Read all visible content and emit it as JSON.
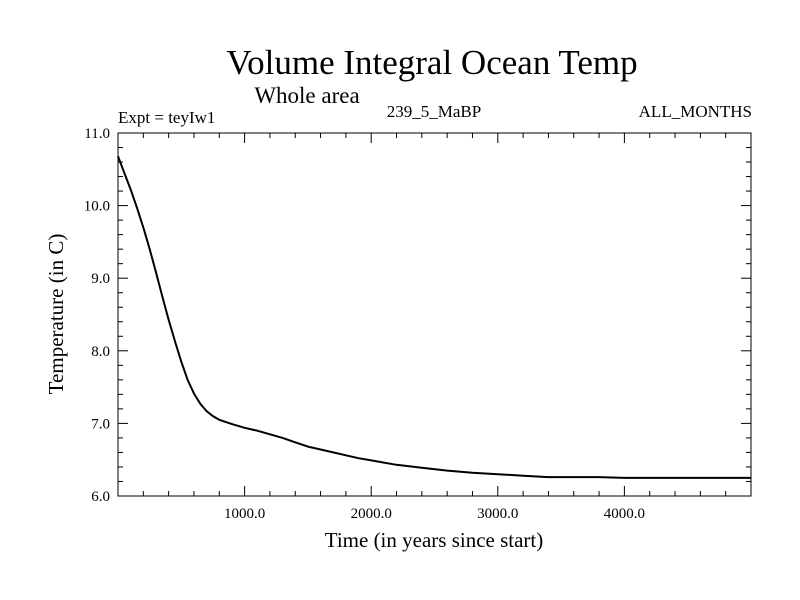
{
  "chart_data": {
    "type": "line",
    "title": "Volume Integral Ocean Temp",
    "subtitle": "Whole area",
    "experiment": "Expt = teyIw1",
    "run_label": "239_5_MaBP",
    "period_label": "ALL_MONTHS",
    "xlabel": "Time (in years since start)",
    "ylabel": "Temperature (in C)",
    "xlim": [
      0,
      5000
    ],
    "ylim": [
      6.0,
      11.0
    ],
    "x_ticks": [
      1000,
      2000,
      3000,
      4000
    ],
    "x_tick_labels": [
      "1000.0",
      "2000.0",
      "3000.0",
      "4000.0"
    ],
    "x_minor_step": 200,
    "y_ticks": [
      6.0,
      7.0,
      8.0,
      9.0,
      10.0,
      11.0
    ],
    "y_tick_labels": [
      "6.0",
      "7.0",
      "8.0",
      "9.0",
      "10.0",
      "11.0"
    ],
    "y_minor_step": 0.2,
    "grid": false,
    "series": [
      {
        "name": "Volume Integral Ocean Temp",
        "color": "#000000",
        "x": [
          0,
          50,
          100,
          150,
          200,
          250,
          300,
          350,
          400,
          450,
          500,
          550,
          600,
          650,
          700,
          750,
          800,
          900,
          1000,
          1100,
          1200,
          1300,
          1400,
          1500,
          1600,
          1700,
          1800,
          1900,
          2000,
          2200,
          2400,
          2600,
          2800,
          3000,
          3200,
          3400,
          3600,
          3800,
          4000,
          4200,
          4400,
          4600,
          4800,
          5000
        ],
        "y": [
          10.68,
          10.45,
          10.22,
          9.97,
          9.7,
          9.4,
          9.08,
          8.75,
          8.43,
          8.13,
          7.85,
          7.6,
          7.41,
          7.27,
          7.17,
          7.1,
          7.05,
          6.99,
          6.94,
          6.9,
          6.85,
          6.8,
          6.74,
          6.68,
          6.64,
          6.6,
          6.56,
          6.52,
          6.49,
          6.43,
          6.39,
          6.35,
          6.32,
          6.3,
          6.28,
          6.26,
          6.26,
          6.26,
          6.25,
          6.25,
          6.25,
          6.25,
          6.25,
          6.25
        ]
      }
    ]
  }
}
